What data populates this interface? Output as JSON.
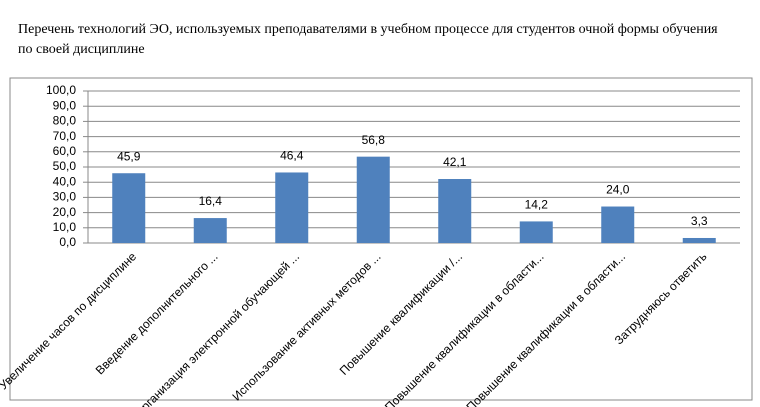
{
  "chart_data": {
    "type": "bar",
    "title": "Перечень технологий ЭО, используемых преподавателями в учебном процессе для студентов очной формы обучения по своей дисциплине",
    "categories": [
      "Увеличение часов по дисциплине",
      "Введение дополнительного ...",
      "Организация  электронной обучающей ...",
      "Использование активных  методов ...",
      "Повышение квалификации  /...",
      "Повышение квалификации  в области...",
      "Повышение квалификации  в области...",
      "Затрудняюсь ответить"
    ],
    "values": [
      45.9,
      16.4,
      46.4,
      56.8,
      42.1,
      14.2,
      24.0,
      3.3
    ],
    "value_labels": [
      "45,9",
      "16,4",
      "46,4",
      "56,8",
      "42,1",
      "14,2",
      "24,0",
      "3,3"
    ],
    "color": "#4f81bd",
    "ylim": [
      0,
      100
    ],
    "yticks": [
      {
        "value": 0,
        "label": "0,0"
      },
      {
        "value": 10,
        "label": "10,0"
      },
      {
        "value": 20,
        "label": "20,0"
      },
      {
        "value": 30,
        "label": "30,0"
      },
      {
        "value": 40,
        "label": "40,0"
      },
      {
        "value": 50,
        "label": "50,0"
      },
      {
        "value": 60,
        "label": "60,0"
      },
      {
        "value": 70,
        "label": "70,0"
      },
      {
        "value": 80,
        "label": "80,0"
      },
      {
        "value": 90,
        "label": "90,0"
      },
      {
        "value": 100,
        "label": "100,0"
      }
    ],
    "grid": true
  }
}
